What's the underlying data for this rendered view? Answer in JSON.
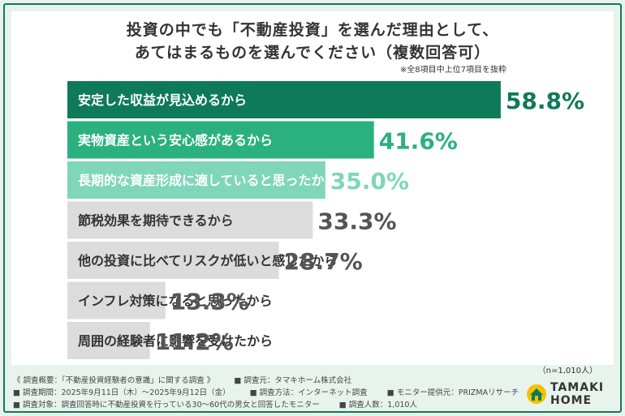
{
  "title_line1": "投資の中でも「不動産投資」を選んだ理由として、",
  "title_line2": "あてはまるものを選んでください（複数回答可）",
  "note": "※全8項目中上位7項目を抜粋",
  "sample_size": "（n=1,010人）",
  "footer": {
    "overview": "《 調査概要：「不動産投資経験者の意識」に関する調査 》",
    "organizer": "■ 調査元：タマキホーム株式会社",
    "period": "■ 調査期間：2025年9月11日（木）～2025年9月12日（金）",
    "method": "■ 調査方法：インターネット調査",
    "monitor": "■ モニター提供元：PRIZMAリサーチ",
    "target": "■ 調査対象：調査回答時に不動産投資を行っている30〜60代の男女と回答したモニター",
    "count": "■ 調査人数：1,010人"
  },
  "logo": {
    "line1": "TAMAKI",
    "line2": "HOME"
  },
  "colors": {
    "top1": "#0f7a57",
    "top2": "#2bb17f",
    "top3": "#7fd6b8",
    "rest": "#dcdcdc",
    "label_dark": "#333333",
    "label_light": "#ffffff"
  },
  "chart_data": {
    "type": "bar",
    "orientation": "horizontal",
    "categories": [
      "安定した収益が見込めるから",
      "実物資産という安心感があるから",
      "長期的な資産形成に適していると思ったから",
      "節税効果を期待できるから",
      "他の投資に比べてリスクが低いと感じたから",
      "インフレ対策になると思ったから",
      "周囲の経験者に影響を受けたから"
    ],
    "values": [
      58.8,
      41.6,
      35.0,
      33.3,
      28.7,
      13.3,
      11.2
    ],
    "value_labels": [
      "58.8%",
      "41.6%",
      "35.0%",
      "33.3%",
      "28.7%",
      "13.3%",
      "11.2%"
    ],
    "unit": "%",
    "xlim": [
      0,
      100
    ],
    "grid": false,
    "legend": "none"
  }
}
